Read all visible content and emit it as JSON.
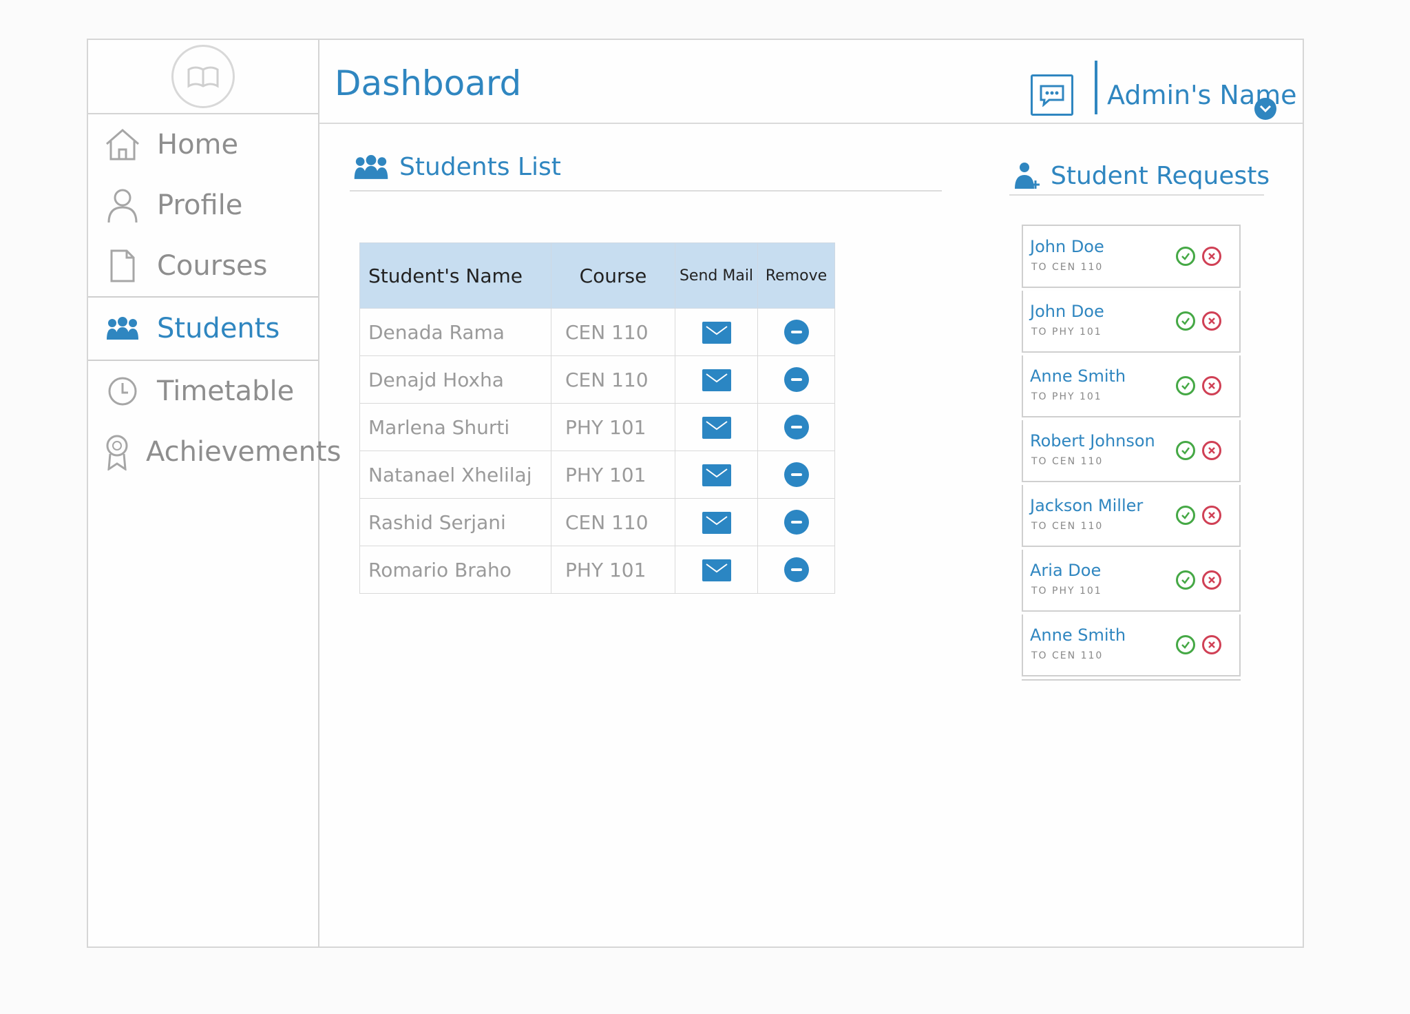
{
  "header": {
    "title": "Dashboard",
    "admin_name": "Admin's Name"
  },
  "sidebar": {
    "items": [
      {
        "label": "Home",
        "icon": "home-icon"
      },
      {
        "label": "Profile",
        "icon": "user-icon"
      },
      {
        "label": "Courses",
        "icon": "document-icon"
      },
      {
        "label": "Students",
        "icon": "group-icon",
        "active": true
      },
      {
        "label": "Timetable",
        "icon": "clock-icon"
      },
      {
        "label": "Achievements",
        "icon": "badge-icon"
      }
    ]
  },
  "students_list": {
    "title": "Students List",
    "columns": [
      "Student's Name",
      "Course",
      "Send Mail",
      "Remove"
    ],
    "rows": [
      {
        "name": "Denada Rama",
        "course": "CEN 110"
      },
      {
        "name": "Denajd Hoxha",
        "course": "CEN 110"
      },
      {
        "name": "Marlena Shurti",
        "course": "PHY 101"
      },
      {
        "name": "Natanael Xhelilaj",
        "course": "PHY 101"
      },
      {
        "name": "Rashid Serjani",
        "course": "CEN 110"
      },
      {
        "name": "Romario Braho",
        "course": "PHY 101"
      }
    ]
  },
  "student_requests": {
    "title": "Student Requests",
    "items": [
      {
        "name": "John Doe",
        "course": "TO CEN 110"
      },
      {
        "name": "John Doe",
        "course": "TO PHY 101"
      },
      {
        "name": "Anne Smith",
        "course": "TO PHY 101"
      },
      {
        "name": "Robert Johnson",
        "course": "TO CEN 110"
      },
      {
        "name": "Jackson Miller",
        "course": "TO CEN 110"
      },
      {
        "name": "Aria Doe",
        "course": "TO PHY 101"
      },
      {
        "name": "Anne Smith",
        "course": "TO CEN 110"
      }
    ]
  },
  "colors": {
    "accent": "#2f86c0",
    "header_fill": "#c7ddf0",
    "accept": "#45a845",
    "reject": "#d04055"
  }
}
